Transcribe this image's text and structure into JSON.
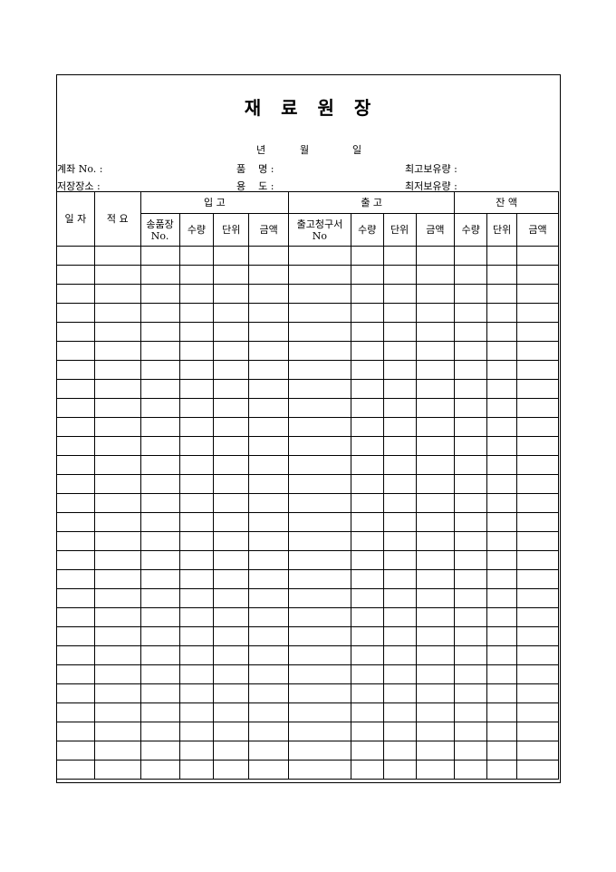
{
  "title": [
    "재",
    "료",
    "원",
    "장"
  ],
  "date": {
    "year": "년",
    "month": "월",
    "day": "일"
  },
  "fields": {
    "account": "계좌 No. :",
    "item_name": "품    명 :",
    "max_stock": "최고보유량 :",
    "location": "저장장소 :",
    "usage": "용    도 :",
    "min_stock": "최저보유량 :"
  },
  "table": {
    "date_col": "일 자",
    "summary_col": "적  요",
    "groups": {
      "in": "입     고",
      "out": "출     고",
      "balance": "잔       액"
    },
    "in_cols": [
      "송품장 No.",
      "수량",
      "단위",
      "금액"
    ],
    "out_cols": [
      "출고청구서 No",
      "수량",
      "단위",
      "금액"
    ],
    "balance_cols": [
      "수량",
      "단위",
      "금액"
    ],
    "row_count": 28
  }
}
